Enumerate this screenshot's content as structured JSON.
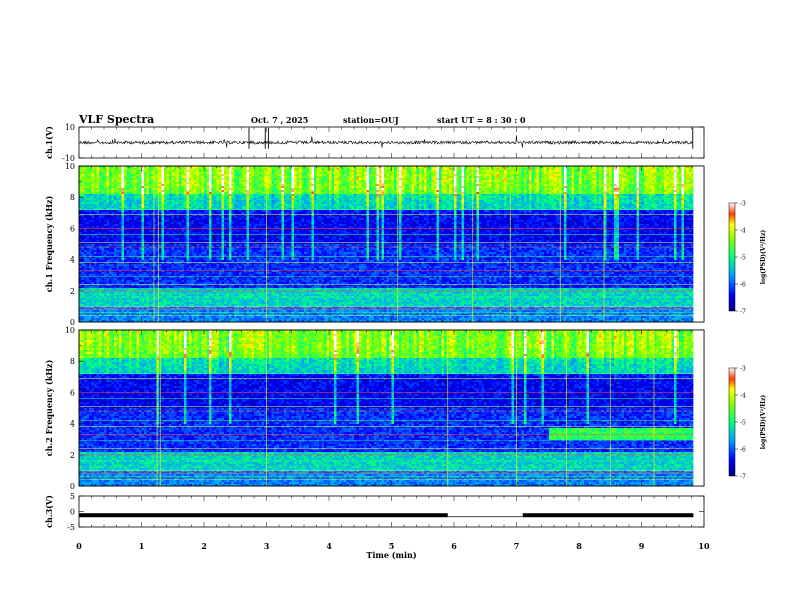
{
  "header": {
    "title": "VLF Spectra",
    "date": "Oct. 7 , 2025",
    "station": "station=OUJ",
    "start": "start UT = 8 : 30 : 0"
  },
  "chart_data": [
    {
      "type": "line",
      "panel": "ch1-waveform",
      "ylabel": "ch.1(V)",
      "ylim": [
        -10,
        10
      ],
      "yticks": [
        10,
        -10
      ],
      "xlim": [
        0,
        10
      ],
      "level": 0,
      "data_end": 9.83
    },
    {
      "type": "heatmap",
      "panel": "ch1-spectrogram",
      "ylabel": "ch.1 Frequency (kHz)",
      "ylim": [
        0,
        10
      ],
      "yticks": [
        0,
        2,
        4,
        6,
        8,
        10
      ],
      "xlim": [
        0,
        10
      ],
      "data_end": 9.83,
      "colorbar": {
        "label": "log(PSD)(V²/Hz)",
        "ticks": [
          -3,
          -4,
          -5,
          -6,
          -7
        ],
        "range": [
          -7,
          -3
        ]
      }
    },
    {
      "type": "heatmap",
      "panel": "ch2-spectrogram",
      "ylabel": "ch.2 Frequency (kHz)",
      "ylim": [
        0,
        10
      ],
      "yticks": [
        0,
        2,
        4,
        6,
        8,
        10
      ],
      "xlim": [
        0,
        10
      ],
      "data_end": 9.83,
      "colorbar": {
        "label": "log(PSD)(V²/Hz)",
        "ticks": [
          -3,
          -4,
          -5,
          -6,
          -7
        ],
        "range": [
          -7,
          -3
        ]
      }
    },
    {
      "type": "line",
      "panel": "ch3-waveform",
      "ylabel": "ch.3(V)",
      "ylim": [
        -5,
        5
      ],
      "yticks": [
        5,
        0,
        -5
      ],
      "xlim": [
        0,
        10
      ],
      "level": -1.2,
      "gap": [
        5.9,
        7.1
      ],
      "data_end": 9.83
    }
  ],
  "xaxis": {
    "label": "Time (min)",
    "ticks": [
      0,
      1,
      2,
      3,
      4,
      5,
      6,
      7,
      8,
      9,
      10
    ]
  }
}
